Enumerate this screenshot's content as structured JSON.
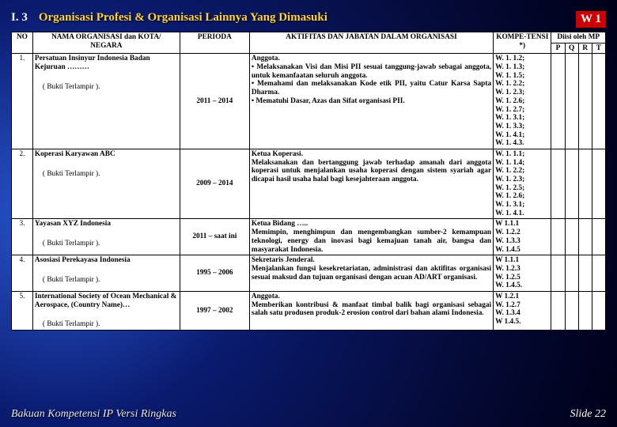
{
  "section": {
    "number": "I. 3",
    "title": "Organisasi Profesi & Organisasi Lainnya Yang Dimasuki"
  },
  "badge": "W 1",
  "headers": {
    "no": "NO",
    "nama": "NAMA ORGANISASI dan KOTA/ NEGARA",
    "perioda": "PERIODA",
    "aktifitas": "AKTIFITAS DAN JABATAN DALAM ORGANISASI",
    "kompetensi": "KOMPE-TENSI *)",
    "diisi": "Diisi oleh MP",
    "p": "P",
    "q": "Q",
    "r": "R",
    "t": "T"
  },
  "bukti": "( Bukti Terlampir ).",
  "rows": [
    {
      "no": "1.",
      "nama": "Persatuan Insinyur Indonesia Badan Kejuruan ………",
      "perioda": "2011 – 2014",
      "aktifitas": "Anggota.\n• Melaksanakan Visi dan Misi PII sesuai tanggung-jawab sebagai anggota, untuk kemanfaatan seluruh anggota.\n• Memahami dan melaksanakan Kode etik PII, yaitu Catur Karsa Sapta Dharma.\n• Mematuhi Dasar, Azas dan Sifat organisasi PII.",
      "kompetensi": "W. 1. 1.2; W. 1. 1.3; W. 1. 1.5; W. 1. 2.2; W. 1. 2.3; W. 1. 2.6; W. 1. 2.7; W. 1. 3.1; W. 1. 3.3; W. 1. 4.1; W. 1. 4.3."
    },
    {
      "no": "2.",
      "nama": "Koperasi  Karyawan ABC",
      "perioda": "2009 – 2014",
      "aktifitas": "Ketua Koperasi.\nMelaksanakan dan bertanggung jawab terhadap amanah dari anggota koperasi untuk menjalankan usaha koperasi dengan sistem syariah agar dicapai hasil usaha halal bagi kesejahteraan anggota.",
      "kompetensi": "W. 1. 1.1; W. 1. 1.4; W. 1. 2.2; W. 1. 2.3; W. 1. 2.5; W. 1. 2.6; W. 1. 3.1; W. 1. 4.1."
    },
    {
      "no": "3.",
      "nama": "Yayasan XYZ  Indonesia",
      "perioda": "2011 – saat ini",
      "aktifitas": "Ketua  Bidang …..\nMemimpin, menghimpun dan mengembangkan sumber-2 kemampuan teknologi, energy dan inovasi bagi kemajuan tanah air, bangsa dan masyarakat Indonesia.",
      "kompetensi": "W 1.1.1\nW. 1.2.2\nW. 1.3.3\nW. 1.4.5"
    },
    {
      "no": "4.",
      "nama": "Asosiasi Perekayasa Indonesia",
      "perioda": "1995 – 2006",
      "aktifitas": "Sekretaris Jenderal.\nMenjalankan fungsi kesekretariatan, administrasi dan aktifitas organisasi sesuai maksud dan tujuan organisasi dengan acuan AD/ART organisasi.",
      "kompetensi": "W 1.1.1\nW. 1.2.3\nW. 1.2.5\nW. 1.4.5."
    },
    {
      "no": "5.",
      "nama": "International Society of Ocean Mechanical & Aerospace, (Country Name)…",
      "perioda": "1997 – 2002",
      "aktifitas": "Anggota.\nMemberikan kontribusi & manfaat timbal balik bagi organisasi sebagai salah satu produsen produk-2 erosion control dari bahan alami Indonesia.",
      "kompetensi": "W 1.2.1\nW. 1.2.7\nW. 1.3.4\nW 1.4.5."
    }
  ],
  "footer": {
    "left": "Bakuan Kompetensi IP Versi Ringkas",
    "right": "Slide 22"
  }
}
